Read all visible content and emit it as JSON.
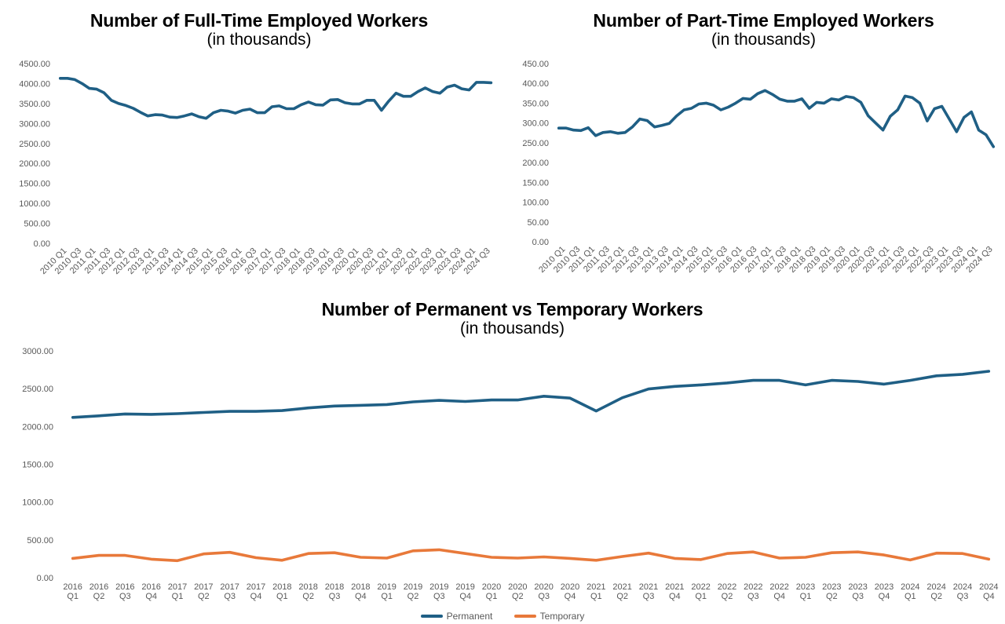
{
  "charts": {
    "fulltime": {
      "title": "Number of Full-Time Employed Workers",
      "subtitle": "(in thousands)"
    },
    "parttime": {
      "title": "Number of Part-Time Employed Workers",
      "subtitle": "(in thousands)"
    },
    "permtemp": {
      "title": "Number of Permanent vs Temporary Workers",
      "subtitle": "(in thousands)"
    }
  },
  "chart_data": [
    {
      "type": "line",
      "title": "Number of Full-Time Employed Workers",
      "subtitle": "(in thousands)",
      "xlabel": "",
      "ylabel": "",
      "ylim": [
        0,
        4500
      ],
      "yticks": [
        "0.00",
        "500.00",
        "1000.00",
        "1500.00",
        "2000.00",
        "2500.00",
        "3000.00",
        "3500.00",
        "4000.00",
        "4500.00"
      ],
      "tick_labels": [
        "2010 Q1",
        "2010 Q3",
        "2011 Q1",
        "2011 Q3",
        "2012 Q1",
        "2012 Q3",
        "2013 Q1",
        "2013 Q3",
        "2014 Q1",
        "2014 Q3",
        "2015 Q1",
        "2015 Q3",
        "2016 Q1",
        "2016 Q3",
        "2017 Q1",
        "2017 Q3",
        "2018 Q1",
        "2018 Q3",
        "2019 Q1",
        "2019 Q3",
        "2020 Q1",
        "2020 Q3",
        "2021 Q1",
        "2021 Q3",
        "2022 Q1",
        "2022 Q3",
        "2023 Q1",
        "2023 Q3",
        "2024 Q1",
        "2024 Q3"
      ],
      "color": "#1f5f85",
      "series": [
        {
          "values": [
            4130,
            4130,
            4100,
            4000,
            3880,
            3860,
            3770,
            3580,
            3500,
            3450,
            3380,
            3280,
            3190,
            3220,
            3210,
            3160,
            3150,
            3190,
            3240,
            3170,
            3130,
            3270,
            3330,
            3310,
            3260,
            3330,
            3360,
            3270,
            3270,
            3420,
            3440,
            3370,
            3370,
            3470,
            3540,
            3470,
            3460,
            3590,
            3600,
            3520,
            3490,
            3490,
            3580,
            3580,
            3330,
            3560,
            3760,
            3680,
            3680,
            3800,
            3890,
            3800,
            3760,
            3910,
            3960,
            3870,
            3840,
            4030,
            4030,
            4020
          ]
        }
      ]
    },
    {
      "type": "line",
      "title": "Number of Part-Time Employed Workers",
      "subtitle": "(in thousands)",
      "xlabel": "",
      "ylabel": "",
      "ylim": [
        0,
        450
      ],
      "yticks": [
        "0.00",
        "50.00",
        "100.00",
        "150.00",
        "200.00",
        "250.00",
        "300.00",
        "350.00",
        "400.00",
        "450.00"
      ],
      "tick_labels": [
        "2010 Q1",
        "2010 Q3",
        "2011 Q1",
        "2011 Q3",
        "2012 Q1",
        "2012 Q3",
        "2013 Q1",
        "2013 Q3",
        "2014 Q1",
        "2014 Q3",
        "2015 Q1",
        "2015 Q3",
        "2016 Q1",
        "2016 Q3",
        "2017 Q1",
        "2017 Q3",
        "2018 Q1",
        "2018 Q3",
        "2019 Q1",
        "2019 Q3",
        "2020 Q1",
        "2020 Q3",
        "2021 Q1",
        "2021 Q3",
        "2022 Q1",
        "2022 Q3",
        "2023 Q1",
        "2023 Q3",
        "2024 Q1",
        "2024 Q3"
      ],
      "color": "#1f5f85",
      "series": [
        {
          "values": [
            287,
            287,
            282,
            281,
            288,
            268,
            276,
            278,
            274,
            276,
            290,
            310,
            306,
            290,
            294,
            299,
            318,
            333,
            337,
            348,
            350,
            345,
            333,
            340,
            350,
            362,
            360,
            374,
            382,
            372,
            360,
            355,
            355,
            361,
            337,
            352,
            350,
            361,
            358,
            367,
            364,
            352,
            318,
            300,
            282,
            317,
            333,
            368,
            364,
            350,
            305,
            336,
            342,
            310,
            278,
            314,
            328,
            282,
            270,
            240
          ]
        }
      ]
    },
    {
      "type": "line",
      "title": "Number of Permanent vs Temporary Workers",
      "subtitle": "(in thousands)",
      "xlabel": "",
      "ylabel": "",
      "ylim": [
        0,
        3000
      ],
      "yticks": [
        "0.00",
        "500.00",
        "1000.00",
        "1500.00",
        "2000.00",
        "2500.00",
        "3000.00"
      ],
      "categories": [
        "2016 Q1",
        "2016 Q2",
        "2016 Q3",
        "2016 Q4",
        "2017 Q1",
        "2017 Q2",
        "2017 Q3",
        "2017 Q4",
        "2018 Q1",
        "2018 Q2",
        "2018 Q3",
        "2018 Q4",
        "2019 Q1",
        "2019 Q2",
        "2019 Q3",
        "2019 Q4",
        "2020 Q1",
        "2020 Q2",
        "2020 Q3",
        "2020 Q4",
        "2021 Q1",
        "2021 Q2",
        "2021 Q3",
        "2021 Q4",
        "2022 Q1",
        "2022 Q2",
        "2022 Q3",
        "2022 Q4",
        "2023 Q1",
        "2023 Q2",
        "2023 Q3",
        "2023 Q4",
        "2024 Q1",
        "2024 Q2",
        "2024 Q3",
        "2024 Q4"
      ],
      "legend_position": "bottom",
      "series": [
        {
          "name": "Permanent",
          "color": "#1f5f85",
          "values": [
            2120,
            2140,
            2165,
            2160,
            2170,
            2185,
            2200,
            2200,
            2210,
            2245,
            2270,
            2280,
            2290,
            2325,
            2345,
            2330,
            2350,
            2350,
            2400,
            2375,
            2205,
            2380,
            2495,
            2530,
            2550,
            2575,
            2610,
            2610,
            2550,
            2610,
            2595,
            2560,
            2610,
            2670,
            2690,
            2730
          ]
        },
        {
          "name": "Temporary",
          "color": "#e8793a",
          "values": [
            255,
            295,
            295,
            245,
            225,
            315,
            335,
            265,
            230,
            320,
            330,
            270,
            260,
            355,
            370,
            320,
            270,
            260,
            275,
            255,
            230,
            280,
            325,
            255,
            240,
            320,
            340,
            260,
            270,
            330,
            340,
            300,
            235,
            325,
            320,
            245
          ]
        }
      ]
    }
  ]
}
